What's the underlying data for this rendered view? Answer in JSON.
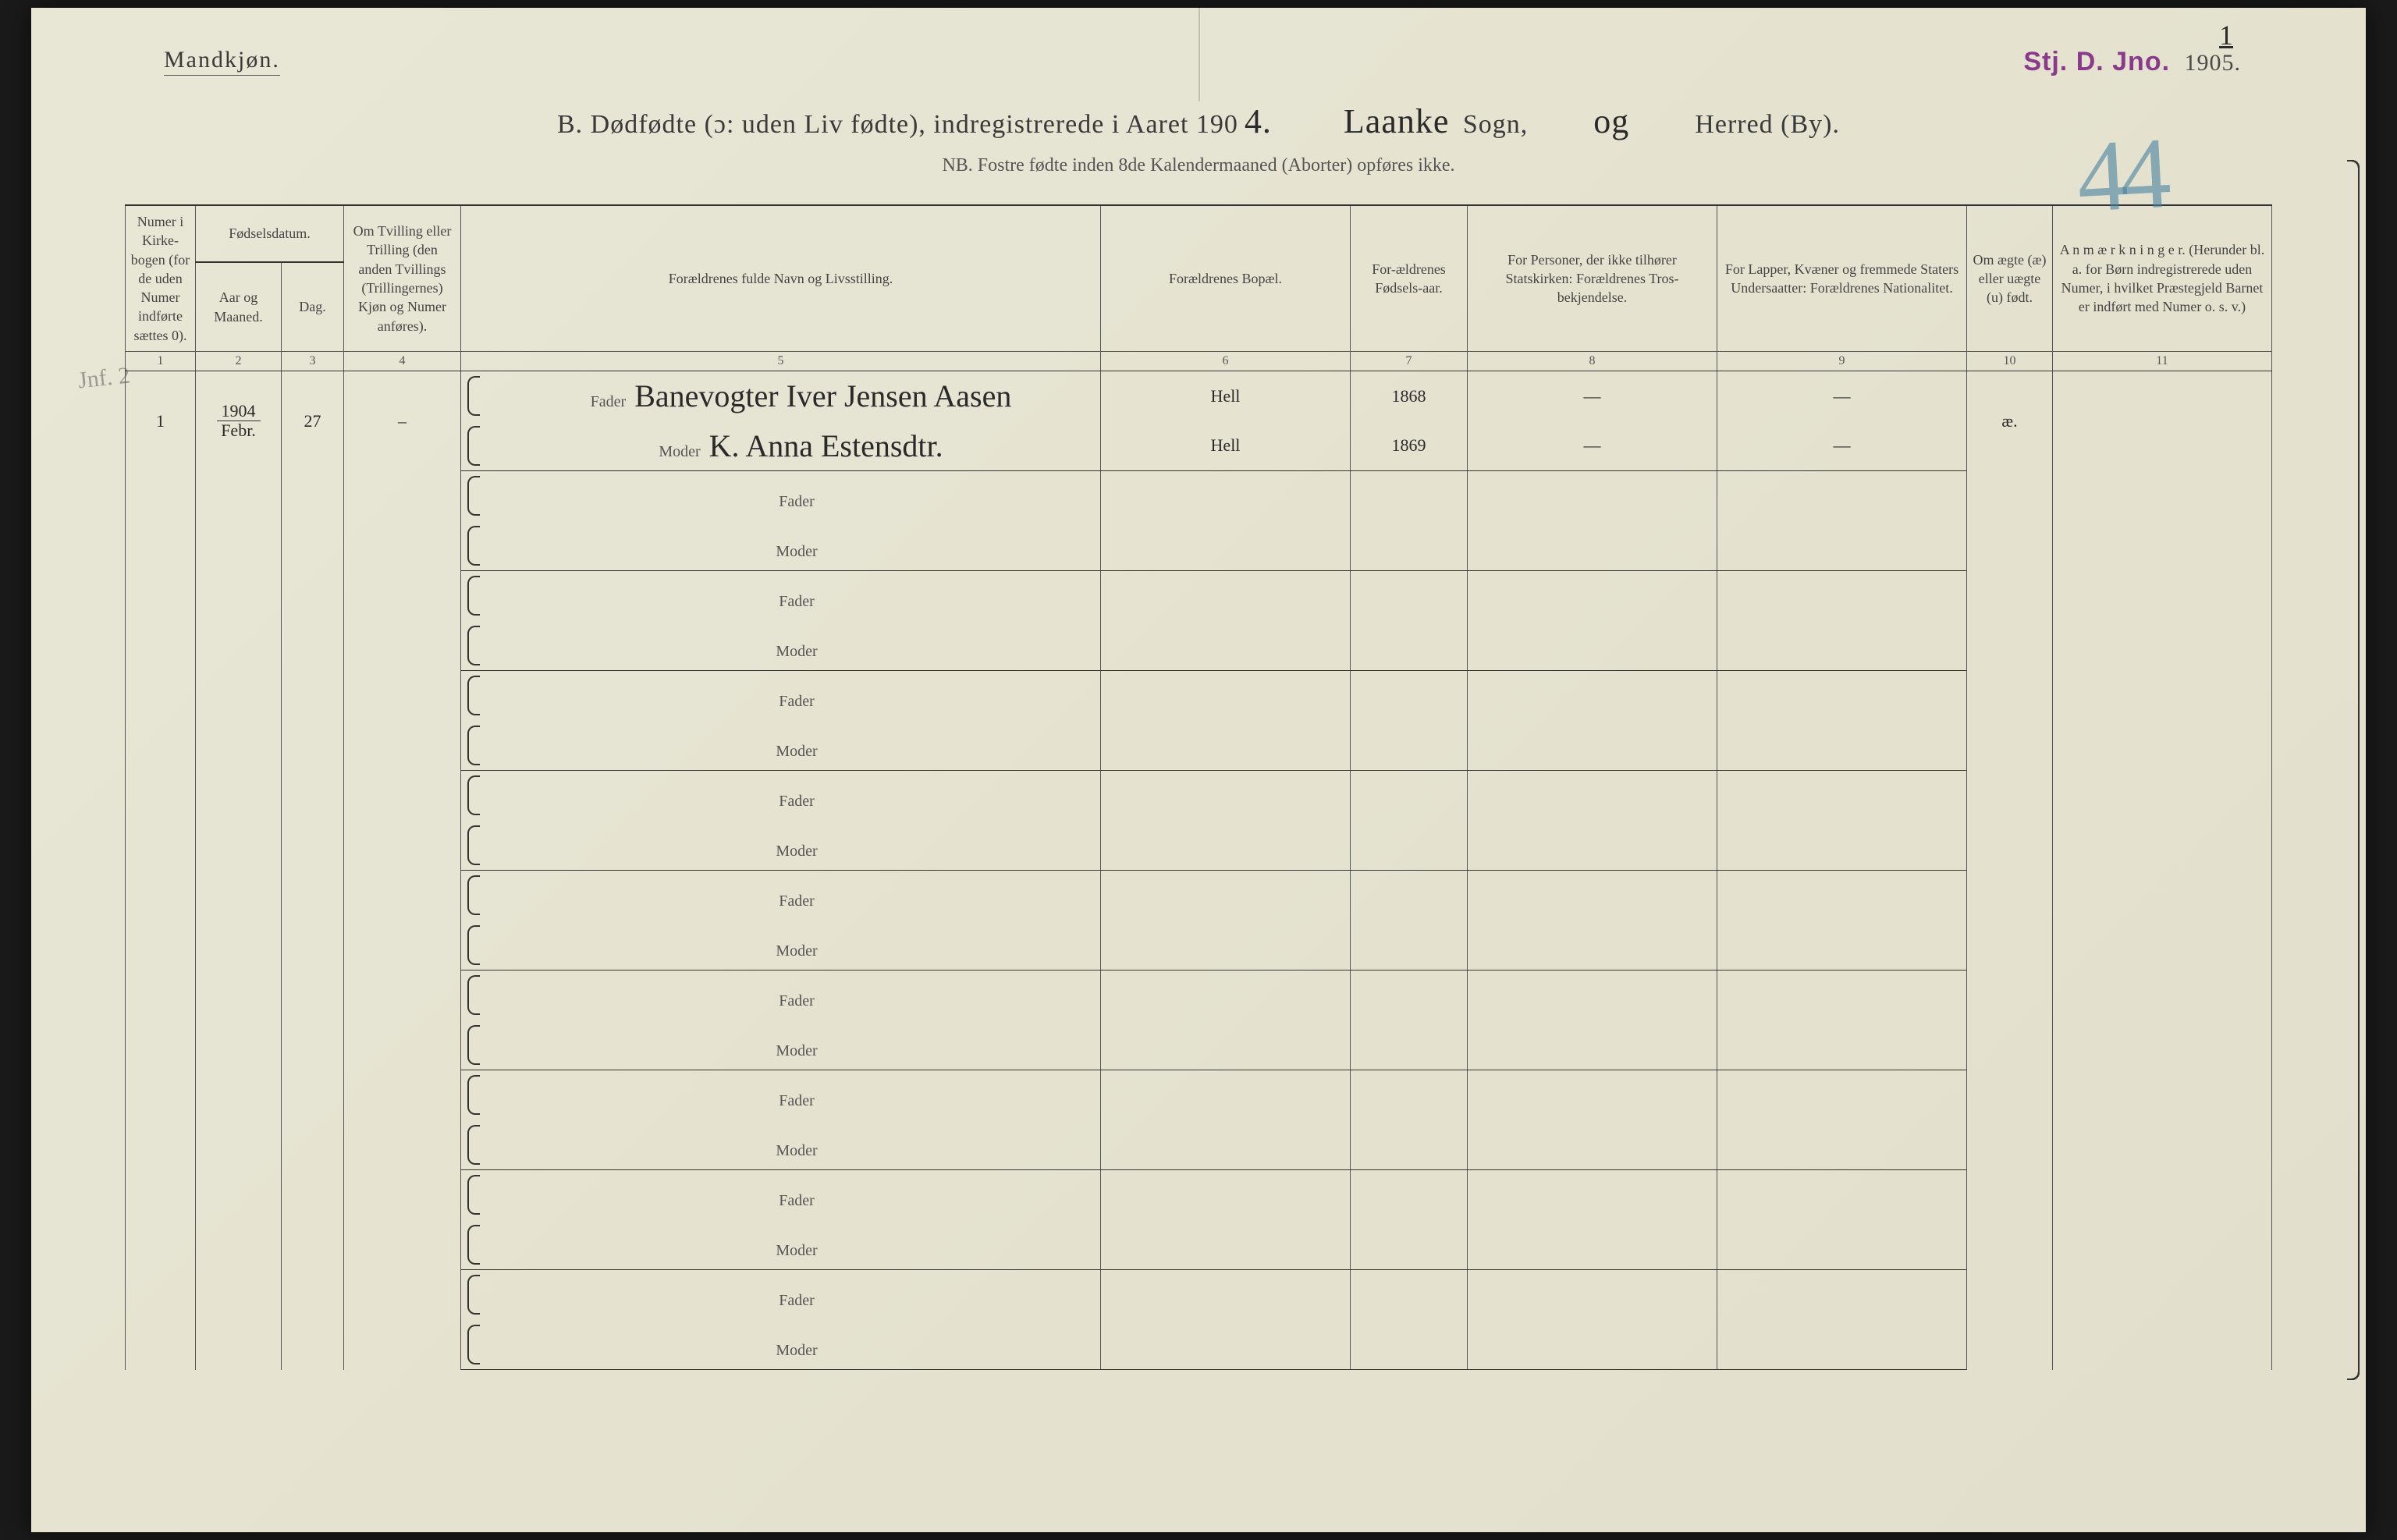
{
  "colors": {
    "paper": "#e5e3d0",
    "ink": "#3a3a3a",
    "rule": "#555555",
    "stamp": "#8a3a8a",
    "pencil_blue": "#4682a0"
  },
  "header": {
    "gender": "Mandkjøn.",
    "stamp_prefix": "Stj. D. Jno.",
    "stamp_hw": "1905.",
    "page_number_hw": "1",
    "pencil_number": "44",
    "title_prefix": "B.  Dødfødte (ɔ: uden Liv fødte), indregistrerede i Aaret 190",
    "year_suffix_hw": "4.",
    "sogn_hw": "Laanke",
    "sogn_label": "Sogn,",
    "og_hw": "og",
    "herred_label": "Herred (By).",
    "subtitle": "NB.  Fostre fødte inden 8de Kalendermaaned (Aborter) opføres ikke."
  },
  "columns": [
    {
      "n": "1",
      "label": "Numer i Kirke-bogen (for de uden Numer indførte sættes 0)."
    },
    {
      "n": "2",
      "label": "Fødselsdatum.",
      "sub1": "Aar og Maaned."
    },
    {
      "n": "3",
      "label": "",
      "sub1": "Dag."
    },
    {
      "n": "4",
      "label": "Om Tvilling eller Trilling (den anden Tvillings (Trillingernes) Kjøn og Numer anføres)."
    },
    {
      "n": "5",
      "label": "Forældrenes fulde Navn og Livsstilling."
    },
    {
      "n": "6",
      "label": "Forældrenes Bopæl."
    },
    {
      "n": "7",
      "label": "For-ældrenes Fødsels-aar."
    },
    {
      "n": "8",
      "label": "For Personer, der ikke tilhører Statskirken: Forældrenes Tros-bekjendelse."
    },
    {
      "n": "9",
      "label": "For Lapper, Kvæner og fremmede Staters Undersaatter: Forældrenes Nationalitet."
    },
    {
      "n": "10",
      "label": "Om ægte (æ) eller uægte (u) født."
    },
    {
      "n": "11",
      "label": "A n m æ r k n i n g e r. (Herunder bl. a. for Børn indregistrerede uden Numer, i hvilket Præstegjeld Barnet er indført med Numer o. s. v.)"
    }
  ],
  "role_labels": {
    "fader": "Fader",
    "moder": "Moder"
  },
  "margin_note": "Jnf. 2",
  "entries": [
    {
      "num": "1",
      "year": "1904",
      "month": "Febr.",
      "day": "27",
      "twin": "–",
      "fader_name": "Banevogter Iver Jensen Aasen",
      "moder_name": "K. Anna Estensdtr.",
      "fader_bopael": "Hell",
      "moder_bopael": "Hell",
      "fader_aar": "1868",
      "moder_aar": "1869",
      "col8_f": "—",
      "col8_m": "—",
      "col9_f": "—",
      "col9_m": "—",
      "col10": "æ.",
      "col11": ""
    }
  ],
  "blank_rows": 9
}
